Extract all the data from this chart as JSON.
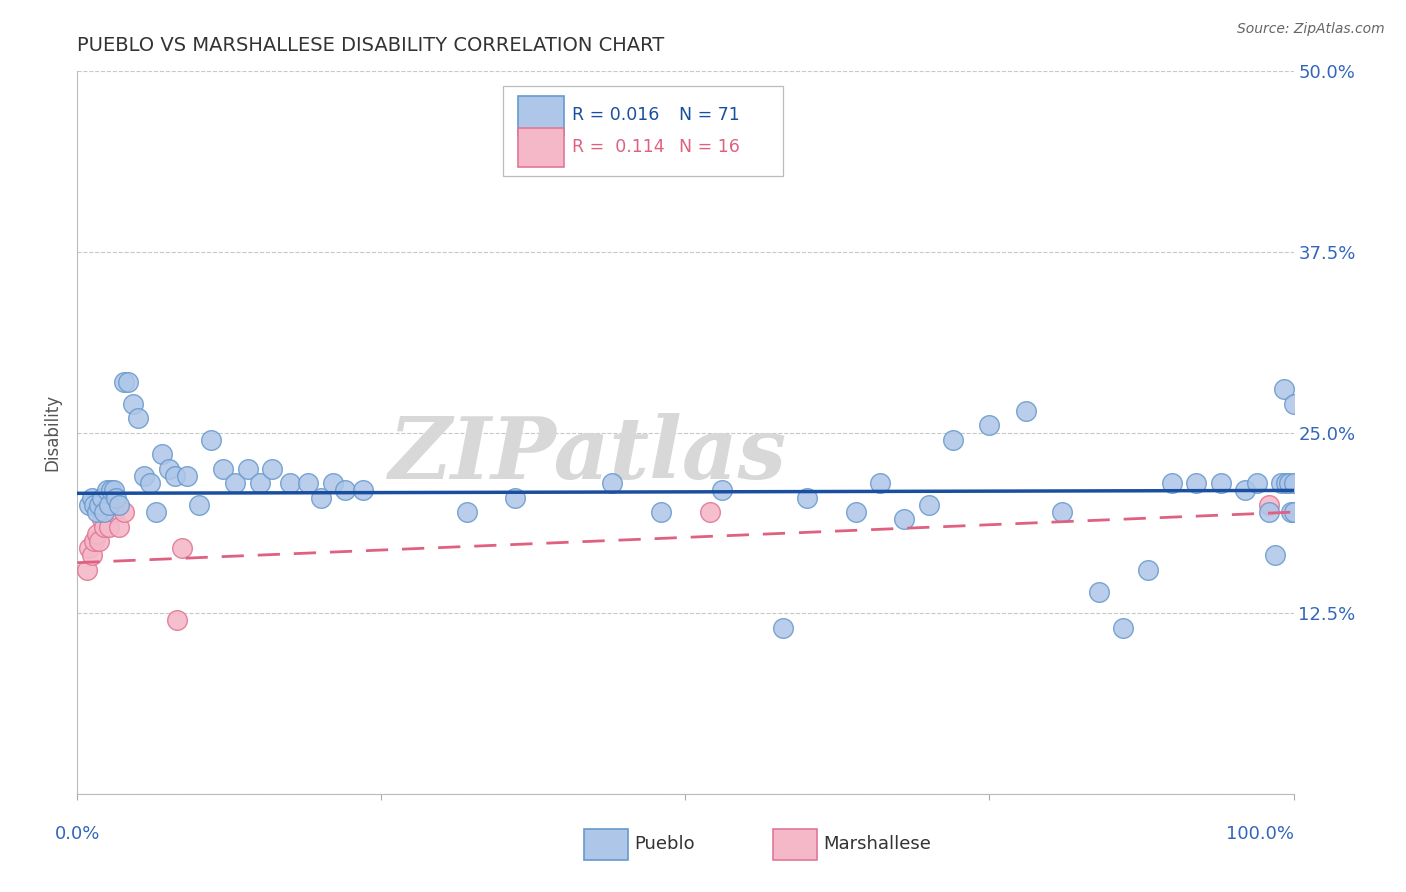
{
  "title": "PUEBLO VS MARSHALLESE DISABILITY CORRELATION CHART",
  "source": "Source: ZipAtlas.com",
  "ylabel": "Disability",
  "xlim": [
    0.0,
    1.0
  ],
  "ylim": [
    0.0,
    0.5
  ],
  "yticks": [
    0.0,
    0.125,
    0.25,
    0.375,
    0.5
  ],
  "ytick_labels": [
    "",
    "12.5%",
    "25.0%",
    "37.5%",
    "50.0%"
  ],
  "xticks": [
    0.0,
    0.25,
    0.5,
    0.75,
    1.0
  ],
  "pueblo_color": "#aec6e8",
  "pueblo_edge": "#6699cc",
  "marshallese_color": "#f4b8c8",
  "marshallese_edge": "#e07898",
  "trend_blue": "#1a4fa0",
  "trend_pink": "#e06080",
  "legend_r1": "R = 0.016",
  "legend_n1": "N = 71",
  "legend_r2": "R =  0.114",
  "legend_n2": "N = 16",
  "watermark": "ZIPatlas",
  "watermark_color": "#d8d8d8",
  "pueblo_x": [
    0.01,
    0.012,
    0.014,
    0.016,
    0.018,
    0.02,
    0.022,
    0.024,
    0.026,
    0.028,
    0.03,
    0.032,
    0.034,
    0.038,
    0.042,
    0.046,
    0.05,
    0.055,
    0.06,
    0.065,
    0.07,
    0.075,
    0.08,
    0.09,
    0.1,
    0.11,
    0.12,
    0.13,
    0.14,
    0.15,
    0.16,
    0.175,
    0.19,
    0.2,
    0.21,
    0.22,
    0.235,
    0.32,
    0.36,
    0.4,
    0.44,
    0.48,
    0.53,
    0.58,
    0.6,
    0.64,
    0.66,
    0.68,
    0.7,
    0.72,
    0.75,
    0.78,
    0.81,
    0.84,
    0.86,
    0.88,
    0.9,
    0.92,
    0.94,
    0.96,
    0.97,
    0.98,
    0.985,
    0.99,
    0.992,
    0.994,
    0.996,
    0.998,
    1.0,
    1.0,
    1.0
  ],
  "pueblo_y": [
    0.2,
    0.205,
    0.2,
    0.195,
    0.2,
    0.205,
    0.195,
    0.21,
    0.2,
    0.21,
    0.21,
    0.205,
    0.2,
    0.285,
    0.285,
    0.27,
    0.26,
    0.22,
    0.215,
    0.195,
    0.235,
    0.225,
    0.22,
    0.22,
    0.2,
    0.245,
    0.225,
    0.215,
    0.225,
    0.215,
    0.225,
    0.215,
    0.215,
    0.205,
    0.215,
    0.21,
    0.21,
    0.195,
    0.205,
    0.44,
    0.215,
    0.195,
    0.21,
    0.115,
    0.205,
    0.195,
    0.215,
    0.19,
    0.2,
    0.245,
    0.255,
    0.265,
    0.195,
    0.14,
    0.115,
    0.155,
    0.215,
    0.215,
    0.215,
    0.21,
    0.215,
    0.195,
    0.165,
    0.215,
    0.28,
    0.215,
    0.215,
    0.195,
    0.27,
    0.195,
    0.215
  ],
  "marshallese_x": [
    0.008,
    0.01,
    0.012,
    0.014,
    0.016,
    0.018,
    0.02,
    0.022,
    0.026,
    0.03,
    0.034,
    0.038,
    0.082,
    0.086,
    0.52,
    0.98
  ],
  "marshallese_y": [
    0.155,
    0.17,
    0.165,
    0.175,
    0.18,
    0.175,
    0.19,
    0.185,
    0.185,
    0.195,
    0.185,
    0.195,
    0.12,
    0.17,
    0.195,
    0.2
  ],
  "blue_trend_y0": 0.208,
  "blue_trend_y1": 0.21,
  "pink_trend_y0": 0.16,
  "pink_trend_y1": 0.195
}
